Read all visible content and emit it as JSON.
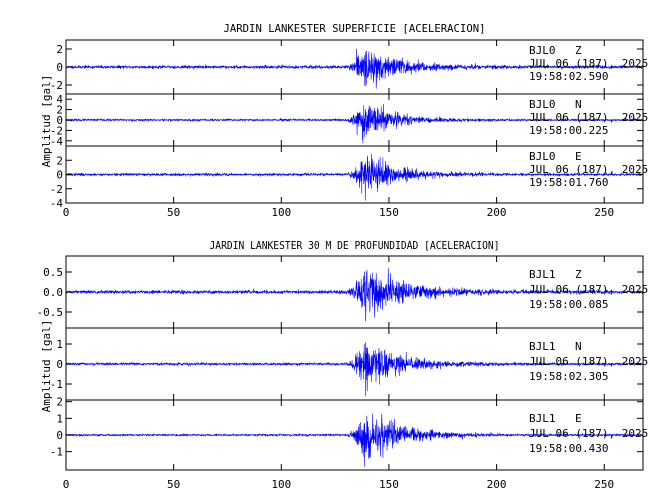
{
  "chart_data": [
    {
      "type": "line",
      "title": "JARDIN LANKESTER SUPERFICIE [ACELERACION]",
      "ylabel": "Amplitud [gal]",
      "xlabel": "",
      "xlim": [
        0,
        268
      ],
      "x_ticks": [
        "0",
        "50",
        "100",
        "150",
        "200",
        "250"
      ],
      "panels": [
        {
          "station": "BJL0",
          "component": "Z",
          "date": "JUL 06 (187), 2025",
          "time": "19:58:02.590",
          "ylim": [
            -3,
            3
          ],
          "y_ticks": [
            "2",
            "0",
            "-2"
          ],
          "onset_s": 129,
          "peak_s": 139,
          "peak_amplitude": 2.6,
          "noise_amplitude": 0.08,
          "coda_s": 45,
          "seed": 11
        },
        {
          "station": "BJL0",
          "component": "N",
          "date": "JUL 06 (187), 2025",
          "time": "19:58:00.225",
          "ylim": [
            -5,
            5
          ],
          "y_ticks": [
            "4",
            "2",
            "0",
            "-2",
            "-4"
          ],
          "onset_s": 129,
          "peak_s": 138,
          "peak_amplitude": 4.5,
          "noise_amplitude": 0.1,
          "coda_s": 40,
          "seed": 23
        },
        {
          "station": "BJL0",
          "component": "E",
          "date": "JUL 06 (187), 2025",
          "time": "19:58:01.760",
          "ylim": [
            -4,
            4
          ],
          "y_ticks": [
            "2",
            "0",
            "-2",
            "-4"
          ],
          "onset_s": 129,
          "peak_s": 139,
          "peak_amplitude": 3.6,
          "noise_amplitude": 0.09,
          "coda_s": 40,
          "seed": 37
        }
      ]
    },
    {
      "type": "line",
      "title": "JARDIN LANKESTER 30 M DE PROFUNDIDAD [ACELERACION]",
      "ylabel": "Amplitud [gal]",
      "xlabel": "",
      "xlim": [
        0,
        268
      ],
      "x_ticks": [
        "0",
        "50",
        "100",
        "150",
        "200",
        "250"
      ],
      "panels": [
        {
          "station": "BJL1",
          "component": "Z",
          "date": "JUL 06 (187), 2025",
          "time": "19:58:00.085",
          "ylim": [
            -0.9,
            0.9
          ],
          "y_ticks": [
            "0.5",
            "0.0",
            "-0.5"
          ],
          "onset_s": 128,
          "peak_s": 139,
          "peak_amplitude": 0.85,
          "noise_amplitude": 0.02,
          "coda_s": 50,
          "seed": 51
        },
        {
          "station": "BJL1",
          "component": "N",
          "date": "JUL 06 (187), 2025",
          "time": "19:58:02.305",
          "ylim": [
            -1.8,
            1.8
          ],
          "y_ticks": [
            "1",
            "0",
            "-1"
          ],
          "onset_s": 129,
          "peak_s": 139,
          "peak_amplitude": 1.6,
          "noise_amplitude": 0.03,
          "coda_s": 45,
          "seed": 67
        },
        {
          "station": "BJL1",
          "component": "E",
          "date": "JUL 06 (187), 2025",
          "time": "19:58:00.430",
          "ylim": [
            -2.1,
            2.1
          ],
          "y_ticks": [
            "2",
            "1",
            "0",
            "-1"
          ],
          "onset_s": 129,
          "peak_s": 139,
          "peak_amplitude": 1.9,
          "noise_amplitude": 0.03,
          "coda_s": 45,
          "seed": 79
        }
      ]
    }
  ]
}
